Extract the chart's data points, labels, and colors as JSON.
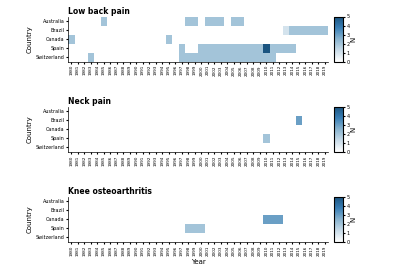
{
  "countries": [
    "Australia",
    "Brazil",
    "Canada",
    "Spain",
    "Switzerland"
  ],
  "years": [
    "1980",
    "1981",
    "1982",
    "1983",
    "1984",
    "1985",
    "1986",
    "1987",
    "1988",
    "1989",
    "1990",
    "1991",
    "1992",
    "1993",
    "1994",
    "1995",
    "1996",
    "1997",
    "1998",
    "1999",
    "2000",
    "2001",
    "2002",
    "2003",
    "2004",
    "2005",
    "2006",
    "2007",
    "2008",
    "2009",
    "2010",
    "2011",
    "2012",
    "2013",
    "2014",
    "2015",
    "2016",
    "2017",
    "2018",
    "2019"
  ],
  "panels": [
    {
      "title": "Low back pain",
      "data": {
        "Australia": {
          "1985": 2,
          "1998": 2,
          "1999": 2,
          "2001": 2,
          "2002": 2,
          "2003": 2,
          "2005": 2,
          "2006": 2
        },
        "Brazil": {
          "2013": 1,
          "2014": 2,
          "2015": 2,
          "2016": 2,
          "2017": 2,
          "2018": 2,
          "2019": 2
        },
        "Canada": {
          "1980": 2,
          "1995": 2
        },
        "Spain": {
          "1997": 2,
          "2000": 2,
          "2001": 2,
          "2002": 2,
          "2003": 2,
          "2004": 2,
          "2005": 2,
          "2006": 2,
          "2007": 2,
          "2008": 2,
          "2009": 2,
          "2010": 5,
          "2011": 2,
          "2012": 2,
          "2013": 2,
          "2014": 2
        },
        "Switzerland": {
          "1983": 2,
          "1997": 2,
          "1998": 2,
          "1999": 2,
          "2000": 2,
          "2001": 2,
          "2002": 2,
          "2003": 2,
          "2004": 2,
          "2005": 2,
          "2006": 2,
          "2007": 2,
          "2008": 2,
          "2009": 2,
          "2010": 2,
          "2011": 2
        }
      }
    },
    {
      "title": "Neck pain",
      "data": {
        "Australia": {},
        "Brazil": {
          "2015": 3
        },
        "Canada": {},
        "Spain": {
          "2010": 2
        },
        "Switzerland": {}
      }
    },
    {
      "title": "Knee osteoarthritis",
      "data": {
        "Australia": {},
        "Brazil": {},
        "Canada": {
          "2010": 3,
          "2011": 3,
          "2012": 3
        },
        "Spain": {
          "1998": 2,
          "1999": 2,
          "2000": 2
        },
        "Switzerland": {}
      }
    }
  ],
  "vmin": 0,
  "vmax": 5,
  "cmap_colors": [
    "#ffffff",
    "#c9dce9",
    "#8ab4cf",
    "#3a7fb5",
    "#1a5480"
  ],
  "background_color": "#ffffff",
  "ylabel": "Country",
  "xlabel": "Year",
  "colorbar_label": "N",
  "colorbar_ticks": [
    0,
    1,
    2,
    3,
    4,
    5
  ]
}
